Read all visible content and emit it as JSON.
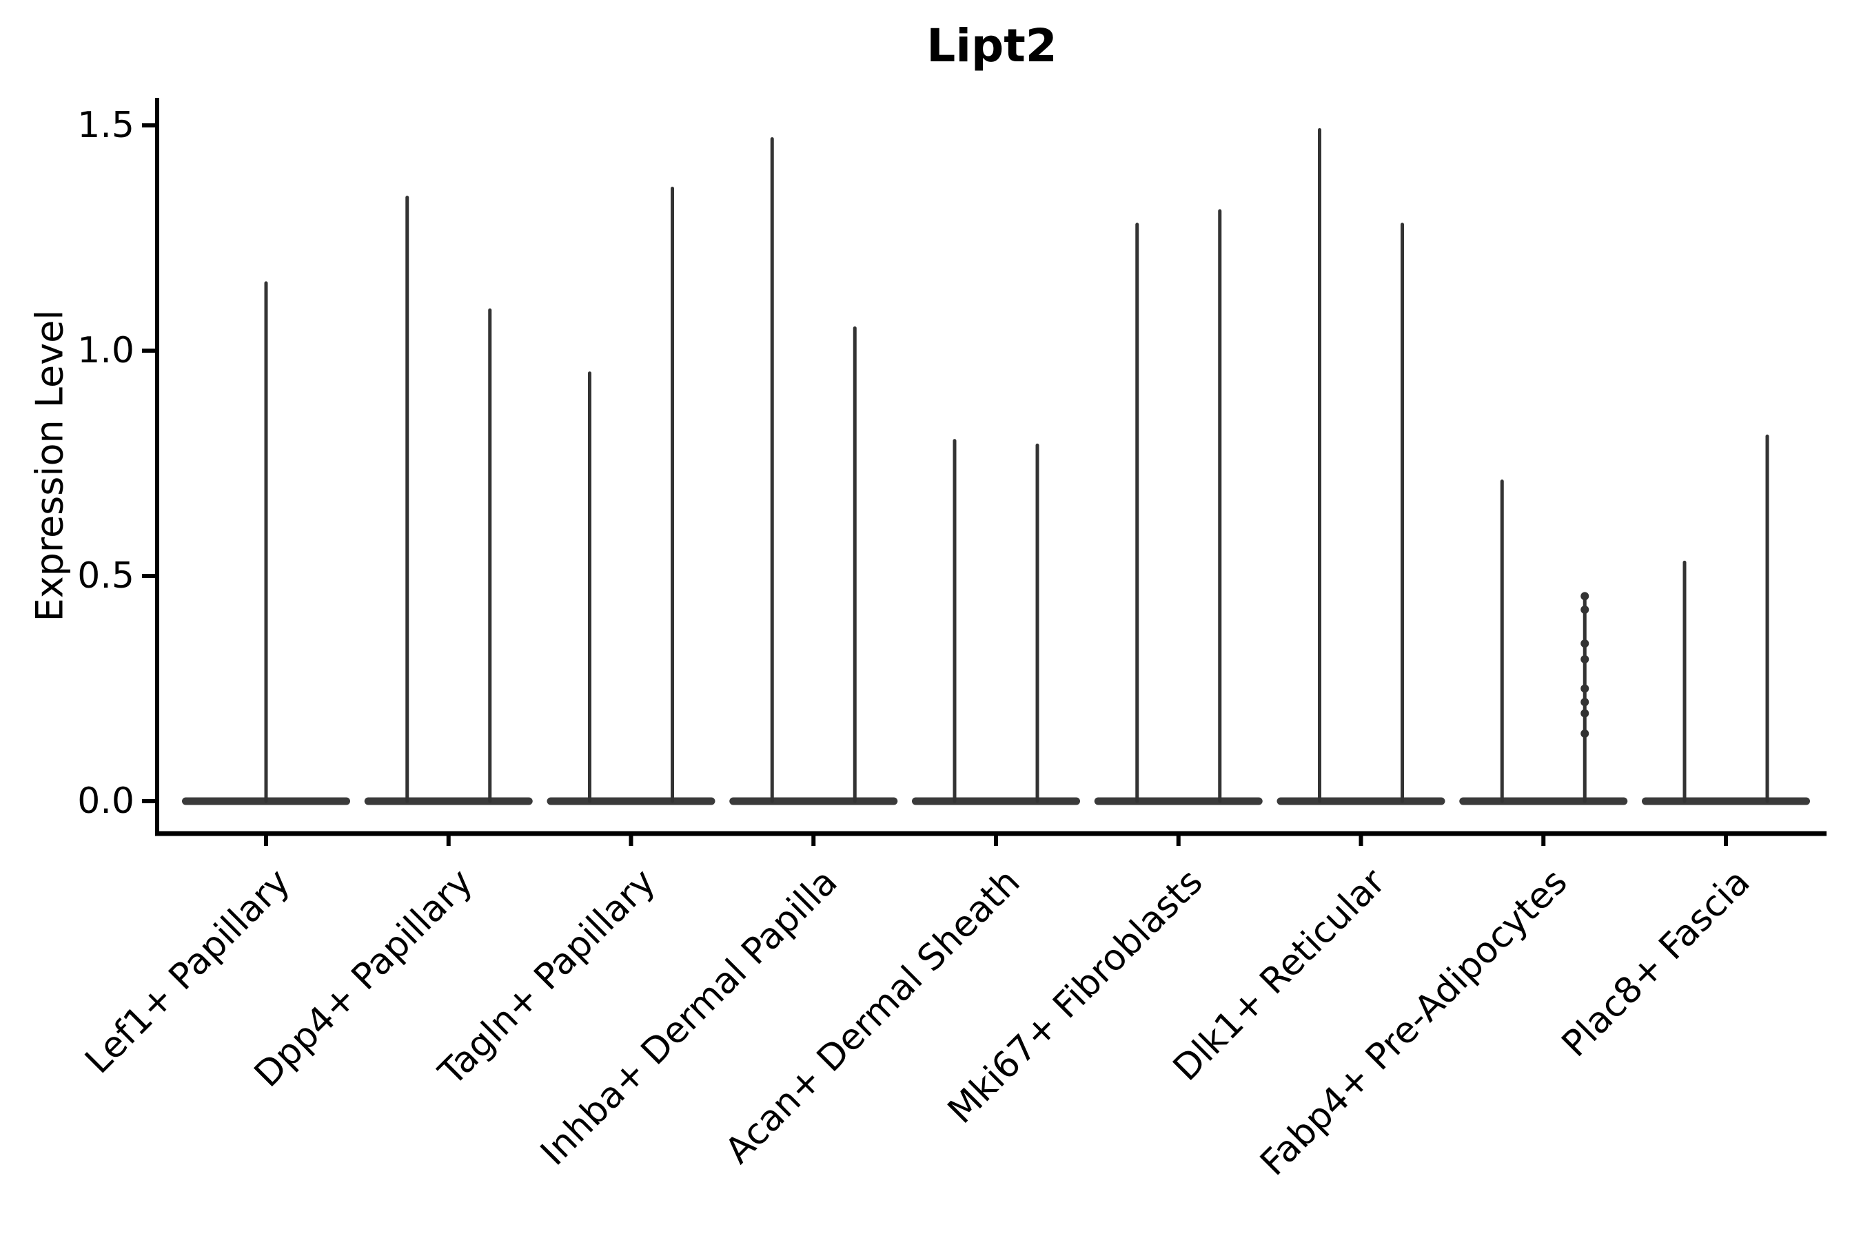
{
  "chart_data": {
    "type": "violin",
    "title": "Lipt2",
    "ylabel": "Expression Level",
    "xlabel": "",
    "ylim": [
      0,
      1.5
    ],
    "yticks": [
      {
        "value": 0.0,
        "label": "0.0"
      },
      {
        "value": 0.5,
        "label": "0.5"
      },
      {
        "value": 1.0,
        "label": "1.0"
      },
      {
        "value": 1.5,
        "label": "1.5"
      }
    ],
    "grid": false,
    "legend": "none",
    "colors": {
      "violin": "#333333",
      "violin_base": "#3a3a3a",
      "axis": "#000000",
      "text": "#000000",
      "background": "#ffffff"
    },
    "categories": [
      {
        "label": "Lef1+ Papillary",
        "violins": [
          {
            "position": "center",
            "max": 1.15
          }
        ]
      },
      {
        "label": "Dpp4+ Papillary",
        "violins": [
          {
            "position": "left",
            "max": 1.34
          },
          {
            "position": "right",
            "max": 1.09
          }
        ]
      },
      {
        "label": "Tagln+ Papillary",
        "violins": [
          {
            "position": "left",
            "max": 0.95
          },
          {
            "position": "right",
            "max": 1.36
          }
        ]
      },
      {
        "label": "Inhba+ Dermal Papilla",
        "violins": [
          {
            "position": "left",
            "max": 1.47
          },
          {
            "position": "right",
            "max": 1.05
          }
        ]
      },
      {
        "label": "Acan+ Dermal Sheath",
        "violins": [
          {
            "position": "left",
            "max": 0.8
          },
          {
            "position": "right",
            "max": 0.79
          }
        ]
      },
      {
        "label": "Mki67+ Fibroblasts",
        "violins": [
          {
            "position": "left",
            "max": 1.28
          },
          {
            "position": "right",
            "max": 1.31
          }
        ]
      },
      {
        "label": "Dlk1+ Reticular",
        "violins": [
          {
            "position": "left",
            "max": 1.49
          },
          {
            "position": "right",
            "max": 1.28
          }
        ]
      },
      {
        "label": "Fabp4+ Pre-Adipocytes",
        "violins": [
          {
            "position": "left",
            "max": 0.71
          },
          {
            "position": "right",
            "max": 0.46,
            "points": [
              0.455,
              0.425,
              0.35,
              0.315,
              0.25,
              0.22,
              0.195,
              0.15
            ]
          }
        ]
      },
      {
        "label": "Plac8+ Fascia",
        "violins": [
          {
            "position": "left",
            "max": 0.53
          },
          {
            "position": "right",
            "max": 0.81
          }
        ]
      }
    ]
  }
}
